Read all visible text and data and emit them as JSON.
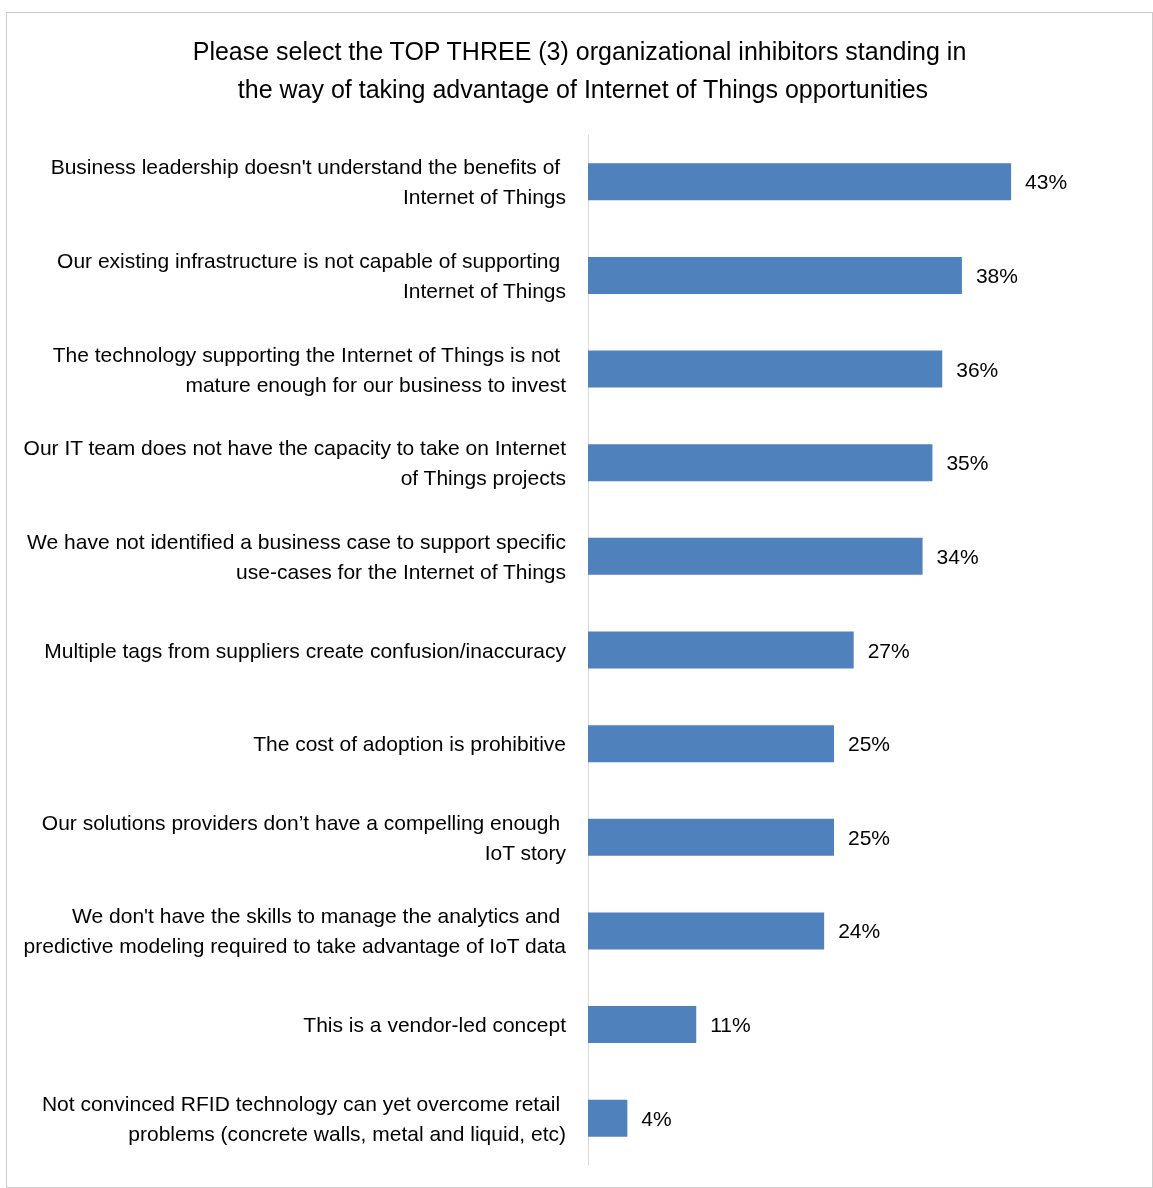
{
  "chart_data": {
    "type": "bar",
    "orientation": "horizontal",
    "title": "Please select the TOP THREE (3) organizational inhibitors standing in the way of taking advantage of Internet of Things opportunities",
    "categories": [
      "Business leadership doesn't understand the benefits of Internet of Things",
      "Our existing infrastructure is not capable of supporting Internet of Things",
      "The technology supporting the Internet of Things is not mature enough for our business to invest",
      "Our IT team does not have the capacity to take on Internet of Things projects",
      "We have not identified a business case to support specific use-cases for the Internet of Things",
      "Multiple tags from suppliers create confusion/inaccuracy",
      "The cost of adoption is prohibitive",
      "Our solutions providers don’t have a compelling enough IoT story",
      "We don't have the skills to manage the analytics and predictive modeling required to take advantage of IoT data",
      "This is a vendor-led concept",
      "Not convinced RFID technology can yet overcome retail problems (concrete walls, metal and liquid, etc)"
    ],
    "values": [
      43,
      38,
      36,
      35,
      34,
      27,
      25,
      25,
      24,
      11,
      4
    ],
    "value_labels": [
      "43%",
      "38%",
      "36%",
      "35%",
      "34%",
      "27%",
      "25%",
      "25%",
      "24%",
      "11%",
      "4%"
    ],
    "color": "#4f81bd",
    "grid": false
  }
}
